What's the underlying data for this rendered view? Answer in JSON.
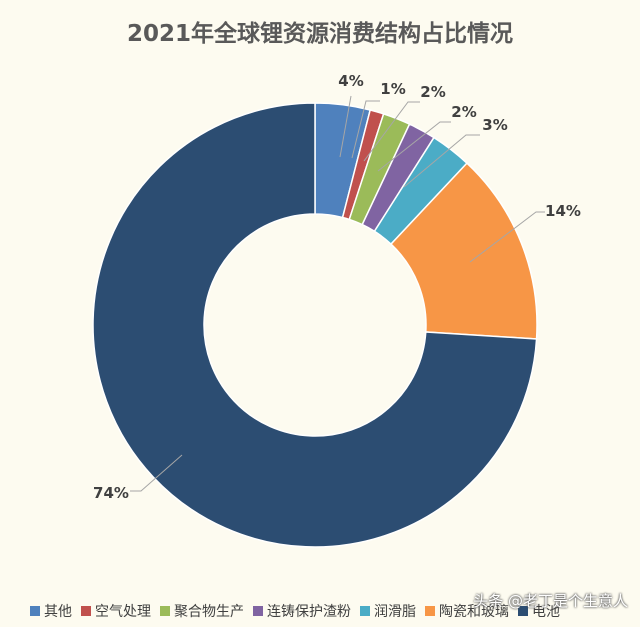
{
  "chart_data": {
    "type": "pie",
    "title": "2021年全球锂资源消费结构占比情况",
    "hole": "donut",
    "categories": [
      "其他",
      "空气处理",
      "聚合物生产",
      "连铸保护渣粉",
      "润滑脂",
      "陶瓷和玻璃",
      "电池"
    ],
    "values": [
      4,
      1,
      2,
      2,
      3,
      14,
      74
    ],
    "labels": [
      "4%",
      "1%",
      "2%",
      "2%",
      "3%",
      "14%",
      "74%"
    ],
    "colors": [
      "#4f81bd",
      "#c0504d",
      "#9bbb59",
      "#8064a2",
      "#4bacc6",
      "#f79646",
      "#2c4d72"
    ],
    "legend_position": "bottom"
  },
  "watermark": "头条 @老丁是个生意人"
}
